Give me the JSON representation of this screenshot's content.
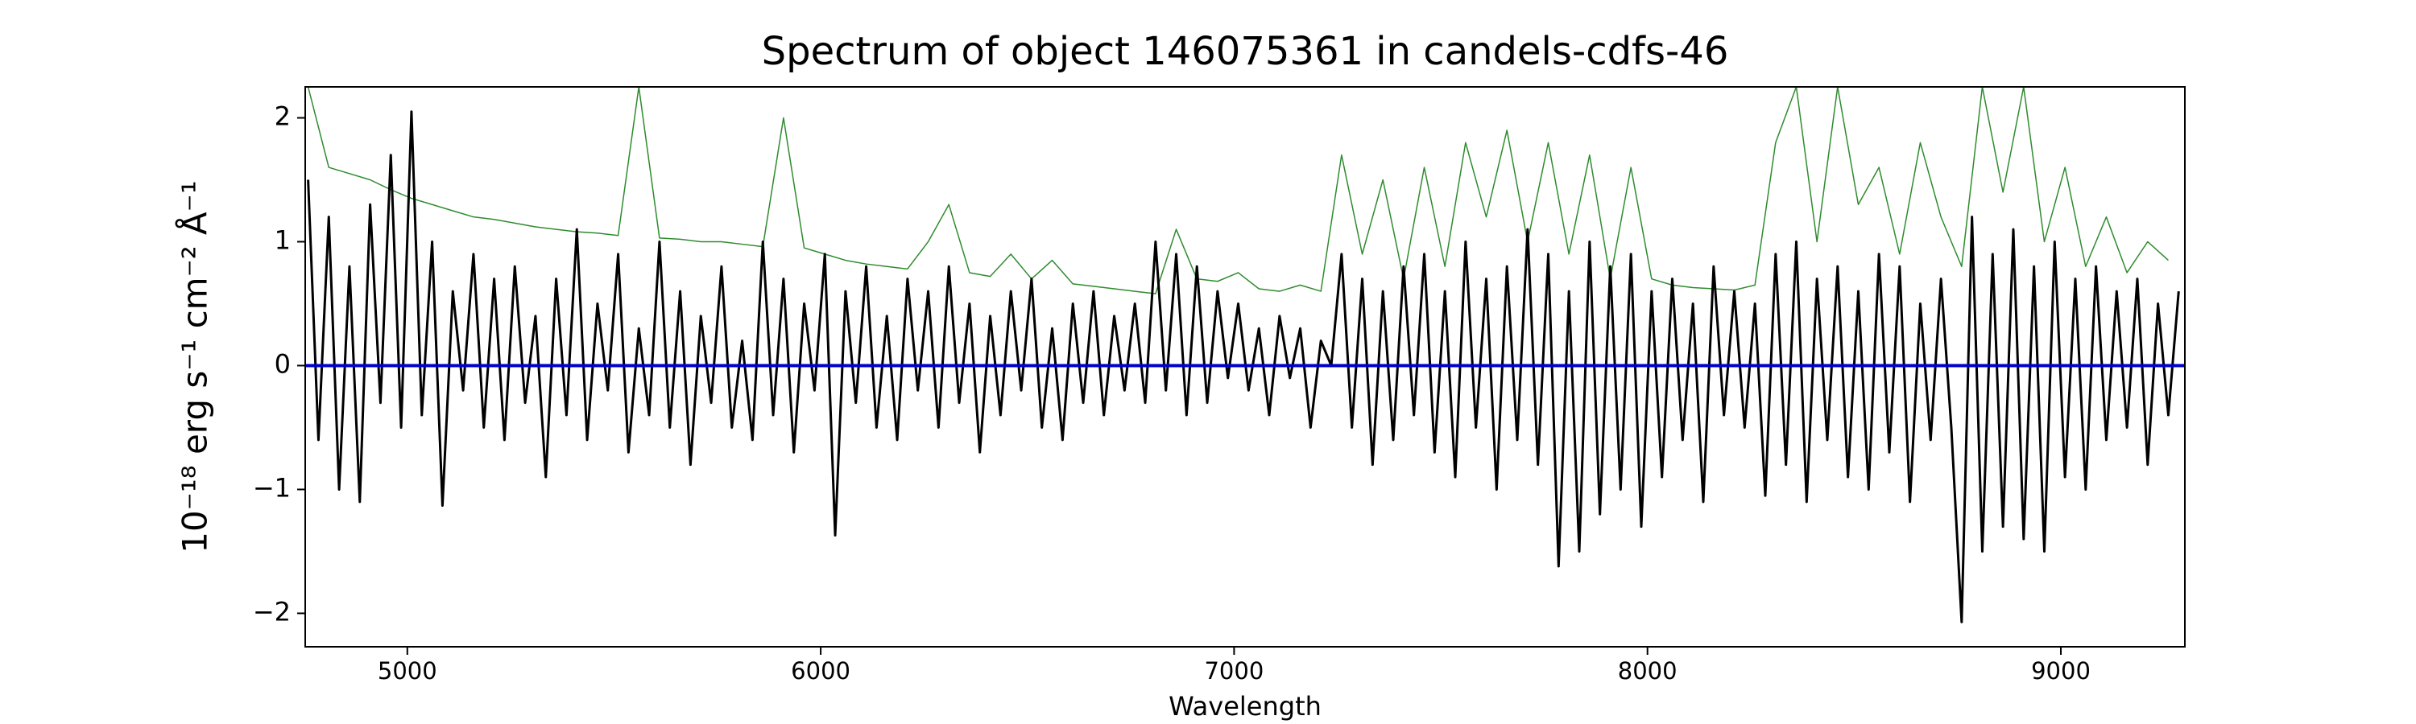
{
  "chart_data": {
    "type": "line",
    "title": "Spectrum of object 146075361 in candels-cdfs-46",
    "xlabel": "Wavelength",
    "ylabel": "10⁻¹⁸ erg s⁻¹ cm⁻² Å⁻¹",
    "xlim": [
      4753,
      9300
    ],
    "ylim": [
      -2.27,
      2.25
    ],
    "xticks": [
      5000,
      6000,
      7000,
      8000,
      9000
    ],
    "yticks": [
      {
        "value": -2,
        "label": "−2"
      },
      {
        "value": -1,
        "label": "−1"
      },
      0,
      1,
      2
    ],
    "series": [
      {
        "color": "#2e8b2e",
        "width": 1.5,
        "x": [
          4760,
          4810,
          4860,
          4910,
          4960,
          5010,
          5060,
          5110,
          5160,
          5210,
          5260,
          5310,
          5360,
          5410,
          5460,
          5510,
          5560,
          5610,
          5660,
          5710,
          5760,
          5810,
          5860,
          5910,
          5960,
          6010,
          6060,
          6110,
          6160,
          6210,
          6260,
          6310,
          6360,
          6410,
          6460,
          6510,
          6560,
          6610,
          6660,
          6710,
          6760,
          6810,
          6860,
          6910,
          6960,
          7010,
          7060,
          7110,
          7160,
          7210,
          7260,
          7310,
          7360,
          7410,
          7460,
          7510,
          7560,
          7610,
          7660,
          7710,
          7760,
          7810,
          7860,
          7910,
          7960,
          8010,
          8060,
          8110,
          8160,
          8210,
          8260,
          8310,
          8360,
          8410,
          8460,
          8510,
          8560,
          8610,
          8660,
          8710,
          8760,
          8810,
          8860,
          8910,
          8960,
          9010,
          9060,
          9110,
          9160,
          9210,
          9260
        ],
        "values": [
          2.25,
          1.6,
          1.55,
          1.5,
          1.42,
          1.35,
          1.3,
          1.25,
          1.2,
          1.18,
          1.15,
          1.12,
          1.1,
          1.08,
          1.07,
          1.05,
          2.25,
          1.03,
          1.02,
          1.0,
          1.0,
          0.98,
          0.96,
          2.0,
          0.95,
          0.9,
          0.85,
          0.82,
          0.8,
          0.78,
          1.0,
          1.3,
          0.75,
          0.72,
          0.9,
          0.7,
          0.85,
          0.66,
          0.64,
          0.62,
          0.6,
          0.58,
          1.1,
          0.7,
          0.68,
          0.75,
          0.62,
          0.6,
          0.65,
          0.6,
          1.7,
          0.9,
          1.5,
          0.7,
          1.6,
          0.8,
          1.8,
          1.2,
          1.9,
          1.0,
          1.8,
          0.9,
          1.7,
          0.7,
          1.6,
          0.7,
          0.65,
          0.63,
          0.62,
          0.61,
          0.65,
          1.8,
          2.25,
          1.0,
          2.25,
          1.3,
          1.6,
          0.9,
          1.8,
          1.2,
          0.8,
          2.25,
          1.4,
          2.25,
          1.0,
          1.6,
          0.8,
          1.2,
          0.75,
          1.0,
          0.85
        ]
      },
      {
        "color": "#000000",
        "width": 3,
        "x": [
          4760,
          4785,
          4810,
          4835,
          4860,
          4885,
          4910,
          4935,
          4960,
          4985,
          5010,
          5035,
          5060,
          5085,
          5110,
          5135,
          5160,
          5185,
          5210,
          5235,
          5260,
          5285,
          5310,
          5335,
          5360,
          5385,
          5410,
          5435,
          5460,
          5485,
          5510,
          5535,
          5560,
          5585,
          5610,
          5635,
          5660,
          5685,
          5710,
          5735,
          5760,
          5785,
          5810,
          5835,
          5860,
          5885,
          5910,
          5935,
          5960,
          5985,
          6010,
          6035,
          6060,
          6085,
          6110,
          6135,
          6160,
          6185,
          6210,
          6235,
          6260,
          6285,
          6310,
          6335,
          6360,
          6385,
          6410,
          6435,
          6460,
          6485,
          6510,
          6535,
          6560,
          6585,
          6610,
          6635,
          6660,
          6685,
          6710,
          6735,
          6760,
          6785,
          6810,
          6835,
          6860,
          6885,
          6910,
          6935,
          6960,
          6985,
          7010,
          7035,
          7060,
          7085,
          7110,
          7135,
          7160,
          7185,
          7210,
          7235,
          7260,
          7285,
          7310,
          7335,
          7360,
          7385,
          7410,
          7435,
          7460,
          7485,
          7510,
          7535,
          7560,
          7585,
          7610,
          7635,
          7660,
          7685,
          7710,
          7735,
          7760,
          7785,
          7810,
          7835,
          7860,
          7885,
          7910,
          7935,
          7960,
          7985,
          8010,
          8035,
          8060,
          8085,
          8110,
          8135,
          8160,
          8185,
          8210,
          8235,
          8260,
          8285,
          8310,
          8335,
          8360,
          8385,
          8410,
          8435,
          8460,
          8485,
          8510,
          8535,
          8560,
          8585,
          8610,
          8635,
          8660,
          8685,
          8710,
          8735,
          8760,
          8785,
          8810,
          8835,
          8860,
          8885,
          8910,
          8935,
          8960,
          8985,
          9010,
          9035,
          9060,
          9085,
          9110,
          9135,
          9160,
          9185,
          9210,
          9235,
          9260,
          9285
        ],
        "values": [
          1.5,
          -0.6,
          1.2,
          -1.0,
          0.8,
          -1.1,
          1.3,
          -0.3,
          1.7,
          -0.5,
          2.05,
          -0.4,
          1.0,
          -1.13,
          0.6,
          -0.2,
          0.9,
          -0.5,
          0.7,
          -0.6,
          0.8,
          -0.3,
          0.4,
          -0.9,
          0.7,
          -0.4,
          1.1,
          -0.6,
          0.5,
          -0.2,
          0.9,
          -0.7,
          0.3,
          -0.4,
          1.0,
          -0.5,
          0.6,
          -0.8,
          0.4,
          -0.3,
          0.8,
          -0.5,
          0.2,
          -0.6,
          1.0,
          -0.4,
          0.7,
          -0.7,
          0.5,
          -0.2,
          0.9,
          -1.37,
          0.6,
          -0.3,
          0.8,
          -0.5,
          0.4,
          -0.6,
          0.7,
          -0.2,
          0.6,
          -0.5,
          0.8,
          -0.3,
          0.5,
          -0.7,
          0.4,
          -0.4,
          0.6,
          -0.2,
          0.7,
          -0.5,
          0.3,
          -0.6,
          0.5,
          -0.3,
          0.6,
          -0.4,
          0.4,
          -0.2,
          0.5,
          -0.3,
          1.0,
          -0.2,
          0.9,
          -0.4,
          0.8,
          -0.3,
          0.6,
          -0.1,
          0.5,
          -0.2,
          0.3,
          -0.4,
          0.4,
          -0.1,
          0.3,
          -0.5,
          0.2,
          0.0,
          0.9,
          -0.5,
          0.7,
          -0.8,
          0.6,
          -0.6,
          0.8,
          -0.4,
          0.9,
          -0.7,
          0.6,
          -0.9,
          1.0,
          -0.5,
          0.7,
          -1.0,
          0.8,
          -0.6,
          1.1,
          -0.8,
          0.9,
          -1.62,
          0.6,
          -1.5,
          1.0,
          -1.2,
          0.8,
          -1.0,
          0.9,
          -1.3,
          0.6,
          -0.9,
          0.7,
          -0.6,
          0.5,
          -1.1,
          0.8,
          -0.4,
          0.6,
          -0.5,
          0.5,
          -1.05,
          0.9,
          -0.8,
          1.0,
          -1.1,
          0.7,
          -0.6,
          0.8,
          -0.9,
          0.6,
          -1.0,
          0.9,
          -0.7,
          0.8,
          -1.1,
          0.5,
          -0.6,
          0.7,
          -0.5,
          -2.07,
          1.2,
          -1.5,
          0.9,
          -1.3,
          1.1,
          -1.4,
          0.8,
          -1.5,
          1.0,
          -0.9,
          0.7,
          -1.0,
          0.8,
          -0.6,
          0.6,
          -0.5,
          0.7,
          -0.8,
          0.5,
          -0.4,
          0.6
        ]
      },
      {
        "color": "#0000cc",
        "width": 4,
        "x": [
          4753,
          9300
        ],
        "values": [
          0,
          0
        ]
      }
    ]
  }
}
